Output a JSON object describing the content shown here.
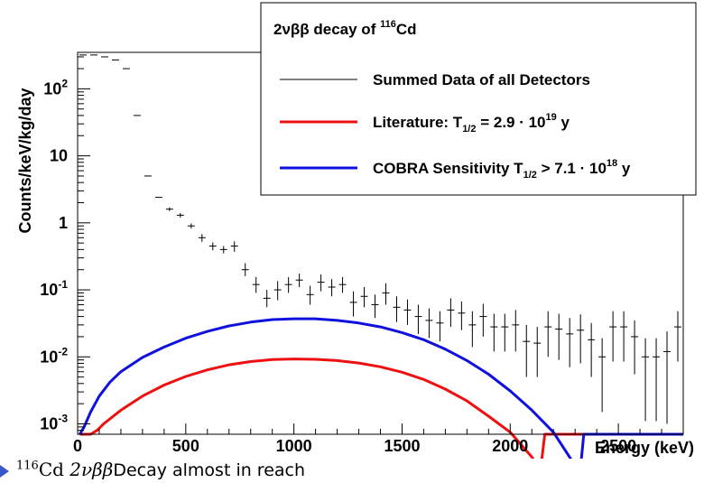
{
  "caption": {
    "text": "116Cd 2νββDecay almost in reach",
    "sup": "116",
    "element": "Cd",
    "mode": "2νββ",
    "rest": "Decay almost in reach"
  },
  "chart_data": {
    "type": "scatter",
    "title": "",
    "xlabel": "Energy (keV)",
    "ylabel": "Counts/keV/kg/day",
    "xlim": [
      0,
      2800
    ],
    "ylim": [
      0.0007,
      350
    ],
    "yscale": "log",
    "grid": false,
    "legend_position": "top-right",
    "x_ticks": [
      0,
      500,
      1000,
      1500,
      2000,
      2500
    ],
    "y_ticks": [
      {
        "value": 0.001,
        "base": "10",
        "exp": "-3"
      },
      {
        "value": 0.01,
        "base": "10",
        "exp": "-2"
      },
      {
        "value": 0.1,
        "base": "10",
        "exp": "-1"
      },
      {
        "value": 1,
        "base": "1",
        "exp": ""
      },
      {
        "value": 10,
        "base": "10",
        "exp": ""
      },
      {
        "value": 100,
        "base": "10",
        "exp": "2"
      }
    ],
    "legend": {
      "header": {
        "prefix": "2νββ decay of ",
        "sup": "116",
        "element": "Cd"
      },
      "entries": [
        {
          "text": "Summed Data of all Detectors",
          "color": "#000000",
          "width": 1
        },
        {
          "text": "Literature: T",
          "sub": "1/2",
          "rest": " = 2.9 · 10",
          "sup": "19",
          "tail": " y",
          "color": "#ee1111",
          "width": 3
        },
        {
          "text": "COBRA Sensitivity T",
          "sub": "1/2",
          "rest": " > 7.1 · 10",
          "sup": "18",
          "tail": " y",
          "color": "#1111dd",
          "width": 3
        }
      ]
    },
    "series": [
      {
        "name": "Summed Data of all Detectors",
        "kind": "points",
        "color": "#000000",
        "half_width": 25,
        "x": [
          25,
          75,
          125,
          175,
          225,
          275,
          325,
          375,
          425,
          475,
          525,
          575,
          625,
          675,
          725,
          775,
          825,
          875,
          925,
          975,
          1025,
          1075,
          1125,
          1175,
          1225,
          1275,
          1325,
          1375,
          1425,
          1475,
          1525,
          1575,
          1625,
          1675,
          1725,
          1775,
          1825,
          1875,
          1925,
          1975,
          2025,
          2075,
          2125,
          2175,
          2225,
          2275,
          2325,
          2375,
          2425,
          2475,
          2525,
          2575,
          2625,
          2675,
          2725,
          2775
        ],
        "y": [
          320,
          320,
          300,
          270,
          200,
          40,
          5,
          2.4,
          1.6,
          1.3,
          0.9,
          0.6,
          0.45,
          0.4,
          0.45,
          0.2,
          0.12,
          0.075,
          0.1,
          0.12,
          0.14,
          0.085,
          0.13,
          0.11,
          0.12,
          0.065,
          0.08,
          0.06,
          0.09,
          0.055,
          0.05,
          0.04,
          0.035,
          0.032,
          0.05,
          0.045,
          0.03,
          0.04,
          0.028,
          0.028,
          0.03,
          0.017,
          0.016,
          0.028,
          0.026,
          0.022,
          0.025,
          0.018,
          0.01,
          0.028,
          0.028,
          0.02,
          0.01,
          0.01,
          0.012,
          0.028
        ],
        "err_low": [
          0,
          0,
          0,
          0,
          0,
          0,
          0,
          0,
          0.1,
          0.1,
          0.08,
          0.08,
          0.06,
          0.05,
          0.08,
          0.04,
          0.03,
          0.02,
          0.03,
          0.03,
          0.03,
          0.025,
          0.035,
          0.03,
          0.03,
          0.025,
          0.025,
          0.022,
          0.03,
          0.022,
          0.02,
          0.018,
          0.016,
          0.015,
          0.022,
          0.02,
          0.016,
          0.02,
          0.016,
          0.016,
          0.018,
          0.012,
          0.011,
          0.018,
          0.017,
          0.015,
          0.017,
          0.013,
          0.0085,
          0.0195,
          0.0195,
          0.0145,
          0.0089,
          0.0089,
          0.011,
          0.0195
        ],
        "err_high": [
          0,
          0,
          0,
          0,
          0,
          0,
          0,
          0,
          0.1,
          0.1,
          0.08,
          0.08,
          0.06,
          0.05,
          0.08,
          0.05,
          0.035,
          0.025,
          0.035,
          0.035,
          0.035,
          0.03,
          0.04,
          0.035,
          0.035,
          0.03,
          0.03,
          0.025,
          0.035,
          0.025,
          0.022,
          0.02,
          0.018,
          0.016,
          0.025,
          0.022,
          0.018,
          0.022,
          0.016,
          0.016,
          0.02,
          0.013,
          0.012,
          0.02,
          0.018,
          0.016,
          0.018,
          0.014,
          0.009,
          0.02,
          0.02,
          0.015,
          0.009,
          0.009,
          0.012,
          0.02
        ]
      },
      {
        "name": "Literature: T1/2 = 2.9 · 10^19 y",
        "kind": "line",
        "color": "#ee1111",
        "x": [
          10,
          60,
          90,
          120,
          200,
          300,
          400,
          500,
          600,
          700,
          800,
          900,
          1000,
          1100,
          1200,
          1300,
          1400,
          1500,
          1600,
          1700,
          1800,
          1900,
          2000,
          2100,
          2140,
          2160,
          2200,
          2800
        ],
        "y": [
          0.0007,
          0.0007,
          0.0008,
          0.001,
          0.0016,
          0.0026,
          0.0038,
          0.0051,
          0.0064,
          0.0076,
          0.0085,
          0.0091,
          0.0093,
          0.0092,
          0.0088,
          0.0081,
          0.0071,
          0.0059,
          0.0046,
          0.0033,
          0.0022,
          0.0013,
          0.00075,
          0.00032,
          0.0002,
          0.0007,
          0.0007,
          0.0007
        ]
      },
      {
        "name": "COBRA Sensitivity T1/2 > 7.1 · 10^18 y",
        "kind": "line",
        "color": "#1111dd",
        "x": [
          10,
          30,
          60,
          100,
          150,
          200,
          300,
          400,
          500,
          600,
          700,
          800,
          900,
          1000,
          1100,
          1200,
          1300,
          1400,
          1500,
          1600,
          1700,
          1800,
          1900,
          2000,
          2100,
          2200,
          2280,
          2320,
          2340,
          2350,
          2800
        ],
        "y": [
          0.0007,
          0.0009,
          0.0015,
          0.0026,
          0.0042,
          0.006,
          0.0098,
          0.014,
          0.019,
          0.024,
          0.029,
          0.033,
          0.036,
          0.037,
          0.037,
          0.035,
          0.032,
          0.028,
          0.023,
          0.018,
          0.013,
          0.0088,
          0.0055,
          0.0031,
          0.0016,
          0.00075,
          0.0003,
          0.00015,
          0.0007,
          0.0007,
          0.0007
        ]
      }
    ]
  }
}
